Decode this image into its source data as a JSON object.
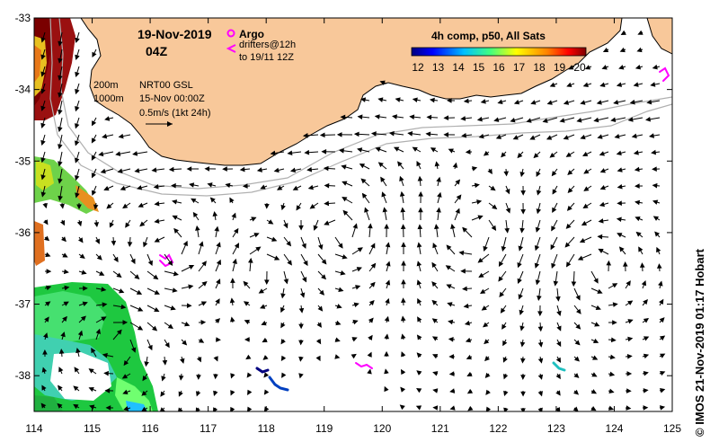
{
  "title": {
    "date": "19-Nov-2019",
    "time": "04Z"
  },
  "legend": {
    "argo_label": "Argo",
    "drifters_label": "drifters@12h",
    "drifters_to": "to 19/11 12Z",
    "contour_200": "200m",
    "contour_1000": "1000m",
    "product": "NRT00 GSL",
    "product_date": "15-Nov 00:00Z",
    "scale_label": "0.5m/s (1kt 24h)"
  },
  "colorbar": {
    "title": "4h comp, p50, All Sats",
    "ticks": [
      "12",
      "13",
      "14",
      "15",
      "16",
      "17",
      "18",
      "19",
      "20"
    ],
    "colors": [
      "#00007f",
      "#0000ff",
      "#007fff",
      "#00ffff",
      "#7fff7f",
      "#ffff00",
      "#ff7f00",
      "#ff0000",
      "#7f0000"
    ]
  },
  "axes": {
    "lon_ticks": [
      "114",
      "115",
      "116",
      "117",
      "118",
      "119",
      "120",
      "121",
      "122",
      "123",
      "124",
      "125"
    ],
    "lat_ticks": [
      "-33",
      "-34",
      "-35",
      "-36",
      "-37",
      "-38"
    ],
    "lon_range": [
      114,
      125
    ],
    "lat_range": [
      -38.5,
      -33
    ]
  },
  "credit": "© IMOS 21-Nov-2019 01:17 Hobart",
  "colors": {
    "land": "#f8c89a",
    "argo": "#ff00ff",
    "contour": "#b0b0b0"
  }
}
